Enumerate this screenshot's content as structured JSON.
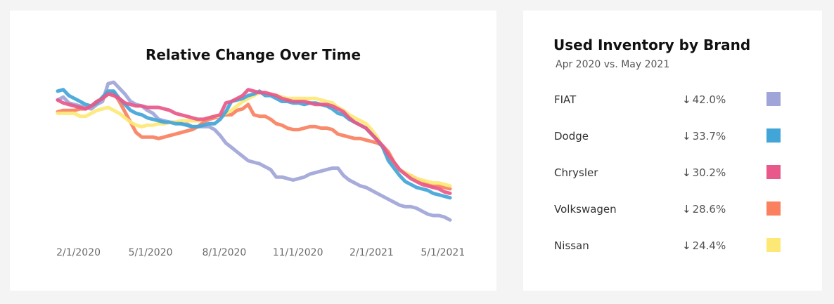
{
  "chart_data": [
    {
      "type": "line",
      "title": "Relative Change Over Time",
      "xlabel": "",
      "ylabel": "",
      "x_tick_labels": [
        "2/1/2020",
        "5/1/2020",
        "8/1/2020",
        "11/1/2020",
        "2/1/2021",
        "5/1/2021"
      ],
      "x": [
        "1/6/2020",
        "1/13/2020",
        "1/20/2020",
        "1/27/2020",
        "2/3/2020",
        "2/10/2020",
        "2/17/2020",
        "2/24/2020",
        "3/2/2020",
        "3/9/2020",
        "3/16/2020",
        "3/23/2020",
        "3/30/2020",
        "4/6/2020",
        "4/13/2020",
        "4/20/2020",
        "4/27/2020",
        "5/4/2020",
        "5/11/2020",
        "5/18/2020",
        "5/25/2020",
        "6/1/2020",
        "6/8/2020",
        "6/15/2020",
        "6/22/2020",
        "6/29/2020",
        "7/6/2020",
        "7/13/2020",
        "7/20/2020",
        "7/27/2020",
        "8/3/2020",
        "8/10/2020",
        "8/17/2020",
        "8/24/2020",
        "8/31/2020",
        "9/7/2020",
        "9/14/2020",
        "9/21/2020",
        "9/28/2020",
        "10/5/2020",
        "10/12/2020",
        "10/19/2020",
        "10/26/2020",
        "11/2/2020",
        "11/9/2020",
        "11/16/2020",
        "11/23/2020",
        "11/30/2020",
        "12/7/2020",
        "12/14/2020",
        "12/21/2020",
        "12/28/2020",
        "1/4/2021",
        "1/11/2021",
        "1/18/2021",
        "1/25/2021",
        "2/1/2021",
        "2/8/2021",
        "2/15/2021",
        "2/22/2021",
        "3/1/2021",
        "3/8/2021",
        "3/15/2021",
        "3/22/2021",
        "3/29/2021",
        "4/5/2021",
        "4/12/2021",
        "4/19/2021",
        "4/26/2021",
        "5/3/2021",
        "5/10/2021"
      ],
      "series": [
        {
          "name": "FIAT",
          "color": "#9fa5d8",
          "values": [
            0.87,
            0.89,
            0.85,
            0.84,
            0.83,
            0.82,
            0.81,
            0.84,
            0.86,
            0.98,
            0.99,
            0.95,
            0.91,
            0.86,
            0.84,
            0.83,
            0.8,
            0.78,
            0.74,
            0.73,
            0.72,
            0.72,
            0.71,
            0.71,
            0.69,
            0.69,
            0.69,
            0.69,
            0.67,
            0.63,
            0.58,
            0.55,
            0.52,
            0.49,
            0.46,
            0.45,
            0.44,
            0.42,
            0.4,
            0.35,
            0.35,
            0.34,
            0.33,
            0.34,
            0.35,
            0.37,
            0.38,
            0.39,
            0.4,
            0.41,
            0.41,
            0.36,
            0.33,
            0.31,
            0.29,
            0.28,
            0.26,
            0.24,
            0.22,
            0.2,
            0.18,
            0.16,
            0.15,
            0.15,
            0.14,
            0.12,
            0.1,
            0.09,
            0.09,
            0.08,
            0.06
          ]
        },
        {
          "name": "Dodge",
          "color": "#42a5d8",
          "values": [
            0.93,
            0.94,
            0.9,
            0.88,
            0.86,
            0.84,
            0.83,
            0.85,
            0.89,
            0.93,
            0.93,
            0.88,
            0.84,
            0.8,
            0.78,
            0.77,
            0.75,
            0.74,
            0.73,
            0.72,
            0.72,
            0.71,
            0.71,
            0.7,
            0.69,
            0.69,
            0.7,
            0.71,
            0.71,
            0.74,
            0.79,
            0.86,
            0.87,
            0.88,
            0.9,
            0.91,
            0.93,
            0.9,
            0.9,
            0.88,
            0.86,
            0.86,
            0.85,
            0.85,
            0.84,
            0.85,
            0.85,
            0.84,
            0.83,
            0.81,
            0.78,
            0.77,
            0.74,
            0.72,
            0.7,
            0.68,
            0.64,
            0.6,
            0.55,
            0.46,
            0.41,
            0.36,
            0.32,
            0.3,
            0.28,
            0.27,
            0.26,
            0.24,
            0.23,
            0.22,
            0.21
          ]
        },
        {
          "name": "Chrysler",
          "color": "#e9588a",
          "values": [
            0.87,
            0.85,
            0.84,
            0.83,
            0.82,
            0.81,
            0.83,
            0.86,
            0.88,
            0.91,
            0.9,
            0.88,
            0.85,
            0.84,
            0.83,
            0.83,
            0.82,
            0.82,
            0.82,
            0.81,
            0.8,
            0.78,
            0.77,
            0.76,
            0.75,
            0.74,
            0.74,
            0.75,
            0.76,
            0.77,
            0.85,
            0.86,
            0.88,
            0.9,
            0.94,
            0.93,
            0.92,
            0.92,
            0.91,
            0.9,
            0.88,
            0.87,
            0.86,
            0.86,
            0.86,
            0.85,
            0.84,
            0.84,
            0.84,
            0.83,
            0.81,
            0.79,
            0.75,
            0.72,
            0.7,
            0.68,
            0.64,
            0.6,
            0.56,
            0.5,
            0.45,
            0.4,
            0.37,
            0.34,
            0.32,
            0.3,
            0.29,
            0.28,
            0.27,
            0.25,
            0.24
          ]
        },
        {
          "name": "Volkswagen",
          "color": "#fa8060",
          "values": [
            0.79,
            0.8,
            0.8,
            0.8,
            0.81,
            0.81,
            0.83,
            0.86,
            0.88,
            0.91,
            0.92,
            0.86,
            0.79,
            0.72,
            0.65,
            0.62,
            0.62,
            0.62,
            0.61,
            0.62,
            0.63,
            0.64,
            0.65,
            0.66,
            0.67,
            0.69,
            0.72,
            0.74,
            0.75,
            0.76,
            0.77,
            0.77,
            0.8,
            0.81,
            0.84,
            0.77,
            0.76,
            0.76,
            0.74,
            0.71,
            0.7,
            0.68,
            0.67,
            0.67,
            0.68,
            0.69,
            0.69,
            0.68,
            0.68,
            0.67,
            0.64,
            0.63,
            0.62,
            0.61,
            0.61,
            0.6,
            0.59,
            0.58,
            0.56,
            0.52,
            0.45,
            0.4,
            0.37,
            0.36,
            0.34,
            0.32,
            0.3,
            0.29,
            0.29,
            0.28,
            0.27
          ]
        },
        {
          "name": "Nissan",
          "color": "#fde876",
          "values": [
            0.78,
            0.78,
            0.78,
            0.78,
            0.76,
            0.76,
            0.78,
            0.8,
            0.81,
            0.82,
            0.8,
            0.78,
            0.75,
            0.72,
            0.7,
            0.69,
            0.7,
            0.7,
            0.71,
            0.71,
            0.72,
            0.72,
            0.73,
            0.73,
            0.73,
            0.73,
            0.74,
            0.75,
            0.76,
            0.76,
            0.78,
            0.8,
            0.83,
            0.86,
            0.88,
            0.9,
            0.92,
            0.92,
            0.91,
            0.9,
            0.89,
            0.88,
            0.88,
            0.88,
            0.88,
            0.88,
            0.88,
            0.87,
            0.86,
            0.85,
            0.82,
            0.8,
            0.77,
            0.75,
            0.73,
            0.71,
            0.67,
            0.62,
            0.55,
            0.48,
            0.43,
            0.4,
            0.38,
            0.36,
            0.34,
            0.33,
            0.32,
            0.31,
            0.31,
            0.3,
            0.29
          ]
        }
      ]
    }
  ],
  "legend_panel": {
    "title": "Used Inventory by Brand",
    "subtitle": "Apr 2020 vs. May 2021",
    "arrow_icon": "down-arrow-icon",
    "rows": [
      {
        "brand": "FIAT",
        "change": "42.0%",
        "color": "#9fa5d8"
      },
      {
        "brand": "Dodge",
        "change": "33.7%",
        "color": "#42a5d8"
      },
      {
        "brand": "Chrysler",
        "change": "30.2%",
        "color": "#e9588a"
      },
      {
        "brand": "Volkswagen",
        "change": "28.6%",
        "color": "#fa8060"
      },
      {
        "brand": "Nissan",
        "change": "24.4%",
        "color": "#fde876"
      }
    ]
  }
}
